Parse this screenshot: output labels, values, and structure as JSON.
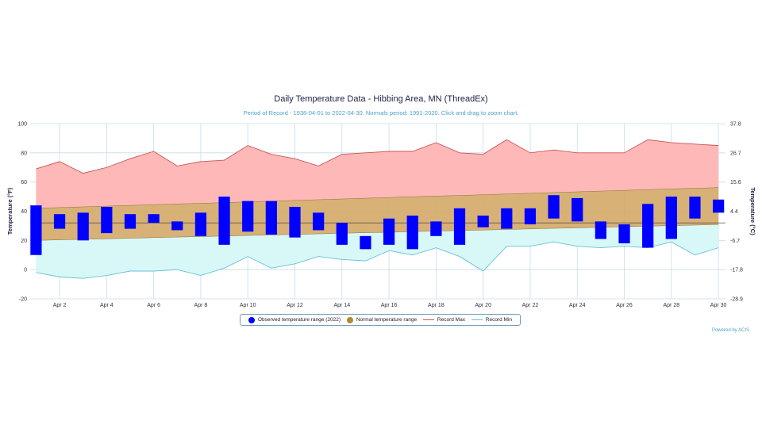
{
  "colors": {
    "observed": "#0000ff",
    "normal_fill": "#d4a868",
    "normal_dot": "#b08a2e",
    "record_max_fill": "#ffb8b8",
    "record_max_line": "#cc5555",
    "record_min_fill": "#d8f8f8",
    "record_min_line": "#66c0d8",
    "grid": "#c8dde8"
  },
  "header": {
    "title": "Daily Temperature Data - Hibbing Area, MN (ThreadEx)",
    "subtitle": "Period of Record - 1938-04-01 to 2022-04-30. Normals period: 1991-2020. Click and drag to zoom chart.",
    "credit": "Powered by ACIS"
  },
  "legend": {
    "observed": "Observed temperature range (2022)",
    "normal": "Normal temperature range",
    "record_max": "Record Max",
    "record_min": "Record Min"
  },
  "chart_data": {
    "type": "bar",
    "title": "Daily Temperature Data - Hibbing Area, MN (ThreadEx)",
    "ylabel": "Temperature (°F)",
    "ylabel_right": "Temperature (°C)",
    "ylim": [
      -20,
      100
    ],
    "y_ticks": [
      "-20",
      "0",
      "20",
      "40",
      "60",
      "80",
      "100"
    ],
    "y_ticks_right": [
      "-28.9",
      "-17.8",
      "-6.7",
      "4.4",
      "15.6",
      "26.7",
      "37.8"
    ],
    "x_tick_labels": [
      "Apr 2",
      "Apr 4",
      "Apr 6",
      "Apr 8",
      "Apr 10",
      "Apr 12",
      "Apr 14",
      "Apr 16",
      "Apr 18",
      "Apr 20",
      "Apr 22",
      "Apr 24",
      "Apr 26",
      "Apr 28",
      "Apr 30"
    ],
    "x_tick_days": [
      2,
      4,
      6,
      8,
      10,
      12,
      14,
      16,
      18,
      20,
      22,
      24,
      26,
      28,
      30
    ],
    "reference_line": 32,
    "grid": true,
    "legend_position": "bottom",
    "days": [
      1,
      2,
      3,
      4,
      5,
      6,
      7,
      8,
      9,
      10,
      11,
      12,
      13,
      14,
      15,
      16,
      17,
      18,
      19,
      20,
      21,
      22,
      23,
      24,
      25,
      26,
      27,
      28,
      29,
      30
    ],
    "series": [
      {
        "name": "Observed temperature range (2022)",
        "low": [
          10,
          28,
          20,
          25,
          28,
          32,
          27,
          23,
          17,
          26,
          24,
          22,
          27,
          17,
          14,
          17,
          14,
          23,
          17,
          29,
          28,
          31,
          35,
          33,
          21,
          18,
          15,
          21,
          35,
          39
        ],
        "high": [
          44,
          38,
          39,
          43,
          38,
          38,
          33,
          39,
          50,
          47,
          47,
          43,
          39,
          32,
          23,
          35,
          37,
          33,
          42,
          37,
          42,
          42,
          51,
          49,
          33,
          31,
          45,
          50,
          50,
          48
        ]
      },
      {
        "name": "Normal temperature range",
        "low": [
          20,
          20.4,
          20.8,
          21.1,
          21.5,
          21.9,
          22.3,
          22.6,
          23,
          23.4,
          23.8,
          24.1,
          24.5,
          24.9,
          25.3,
          25.6,
          26,
          26.4,
          26.8,
          27.1,
          27.5,
          27.9,
          28.3,
          28.6,
          29,
          29.4,
          29.8,
          30.1,
          30.5,
          30.9
        ],
        "high": [
          42,
          42.5,
          43,
          43.5,
          44,
          44.5,
          45,
          45.4,
          45.9,
          46.4,
          46.9,
          47.4,
          47.9,
          48.4,
          48.9,
          49.4,
          49.9,
          50.4,
          50.8,
          51.3,
          51.8,
          52.3,
          52.8,
          53.3,
          53.8,
          54.3,
          54.8,
          55.3,
          55.7,
          56.2
        ]
      },
      {
        "name": "Record Max",
        "values": [
          69,
          74,
          66,
          70,
          76,
          81,
          71,
          74,
          75,
          85,
          79,
          76,
          71,
          79,
          80,
          81,
          81,
          87,
          80,
          79,
          89,
          80,
          82,
          80,
          80,
          80,
          89,
          87,
          86,
          85
        ]
      },
      {
        "name": "Record Min",
        "values": [
          -2,
          -5,
          -6,
          -4,
          -1,
          -1,
          0,
          -4,
          1,
          9,
          1,
          4,
          9,
          7,
          6,
          13,
          10,
          15,
          9,
          -1,
          16,
          16,
          19,
          16,
          15,
          16,
          15,
          19,
          10,
          15
        ]
      }
    ]
  }
}
